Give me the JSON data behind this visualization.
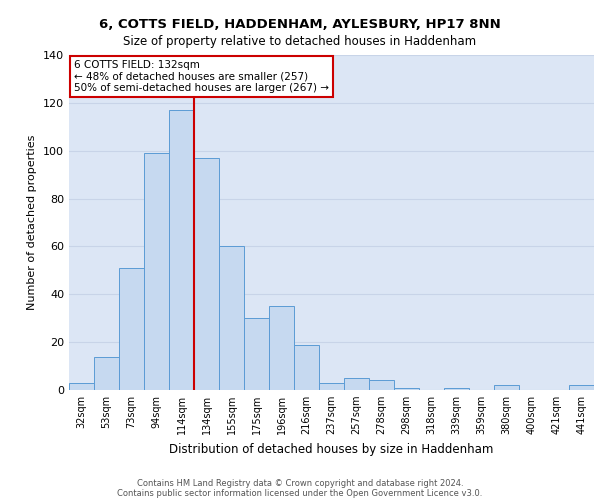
{
  "title_line1": "6, COTTS FIELD, HADDENHAM, AYLESBURY, HP17 8NN",
  "title_line2": "Size of property relative to detached houses in Haddenham",
  "xlabel": "Distribution of detached houses by size in Haddenham",
  "ylabel": "Number of detached properties",
  "footer_line1": "Contains HM Land Registry data © Crown copyright and database right 2024.",
  "footer_line2": "Contains public sector information licensed under the Open Government Licence v3.0.",
  "categories": [
    "32sqm",
    "53sqm",
    "73sqm",
    "94sqm",
    "114sqm",
    "134sqm",
    "155sqm",
    "175sqm",
    "196sqm",
    "216sqm",
    "237sqm",
    "257sqm",
    "278sqm",
    "298sqm",
    "318sqm",
    "339sqm",
    "359sqm",
    "380sqm",
    "400sqm",
    "421sqm",
    "441sqm"
  ],
  "values": [
    3,
    14,
    51,
    99,
    117,
    97,
    60,
    30,
    35,
    19,
    3,
    5,
    4,
    1,
    0,
    1,
    0,
    2,
    0,
    0,
    2
  ],
  "bar_color": "#c6d9f0",
  "bar_edge_color": "#5b9bd5",
  "annotation_box_text": "6 COTTS FIELD: 132sqm\n← 48% of detached houses are smaller (257)\n50% of semi-detached houses are larger (267) →",
  "annotation_box_color": "#ffffff",
  "annotation_box_edge_color": "#cc0000",
  "vline_x_index": 4.5,
  "vline_color": "#cc0000",
  "grid_color": "#c8d4e8",
  "background_color": "#dce6f5",
  "ylim": [
    0,
    140
  ],
  "yticks": [
    0,
    20,
    40,
    60,
    80,
    100,
    120,
    140
  ]
}
